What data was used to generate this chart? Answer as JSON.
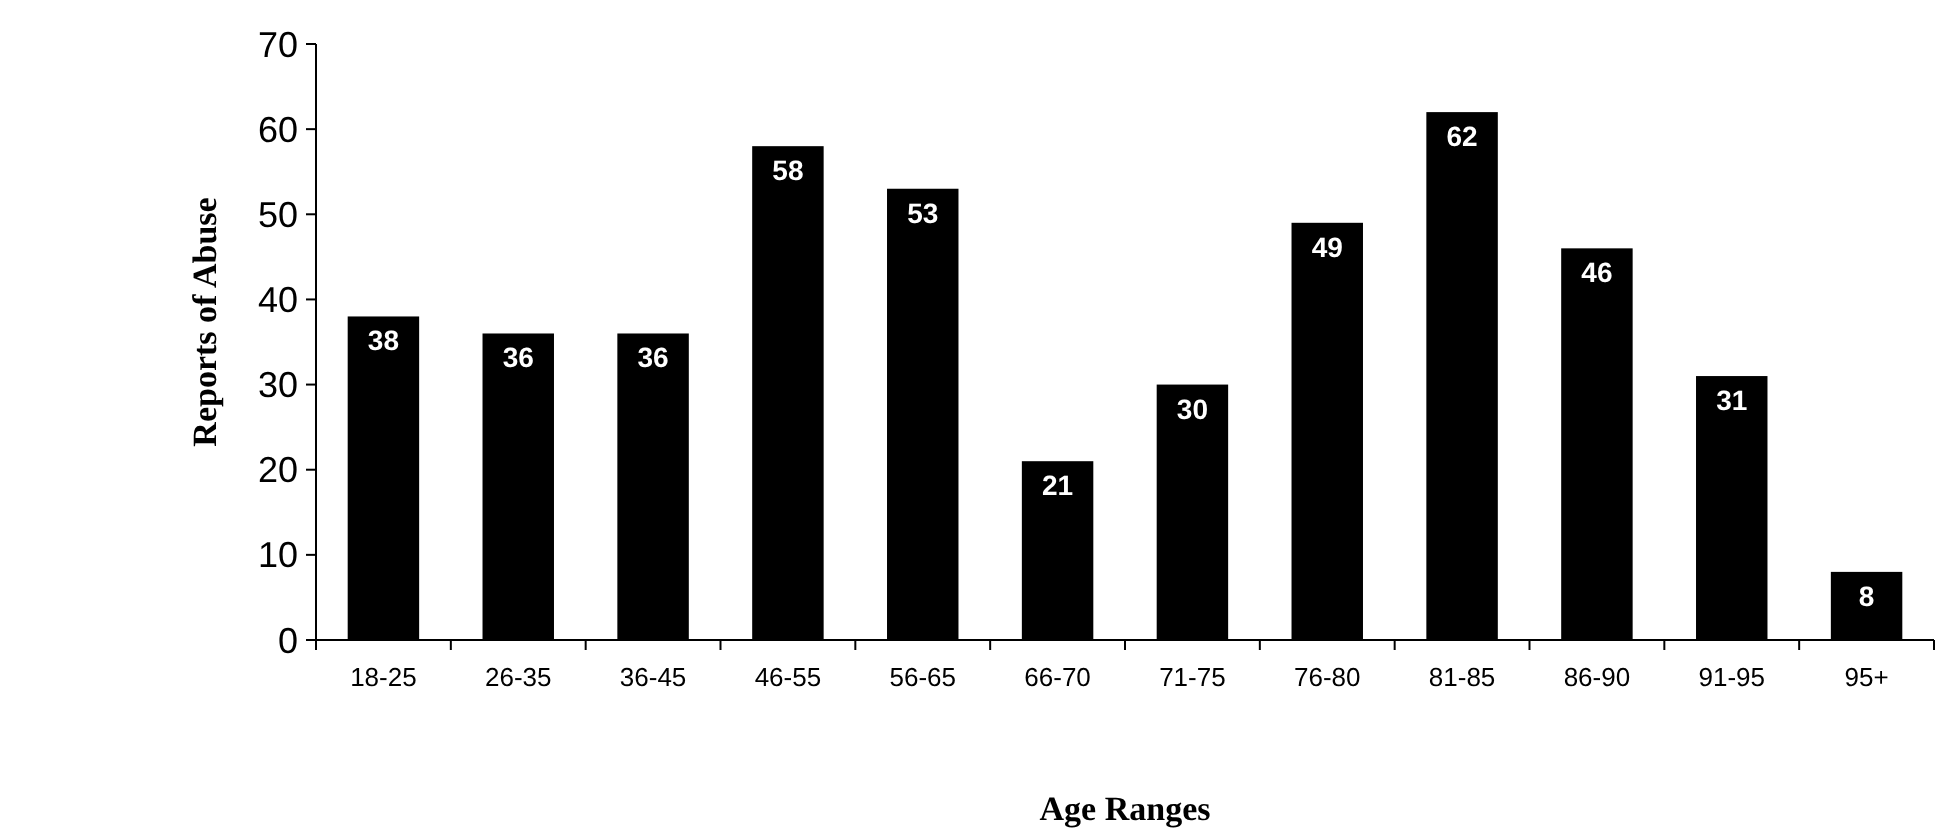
{
  "chart_data": {
    "type": "bar",
    "xlabel": "Age Ranges",
    "ylabel": "Reports of Abuse",
    "categories": [
      "18-25",
      "26-35",
      "36-45",
      "46-55",
      "56-65",
      "66-70",
      "71-75",
      "76-80",
      "81-85",
      "86-90",
      "91-95",
      "95+"
    ],
    "values": [
      38,
      36,
      36,
      58,
      53,
      21,
      30,
      49,
      62,
      46,
      31,
      8
    ],
    "color": "#000000",
    "ylim": [
      0,
      70
    ],
    "yticks": [
      0,
      10,
      20,
      30,
      40,
      50,
      60,
      70
    ],
    "grid": false,
    "data_labels": true
  }
}
